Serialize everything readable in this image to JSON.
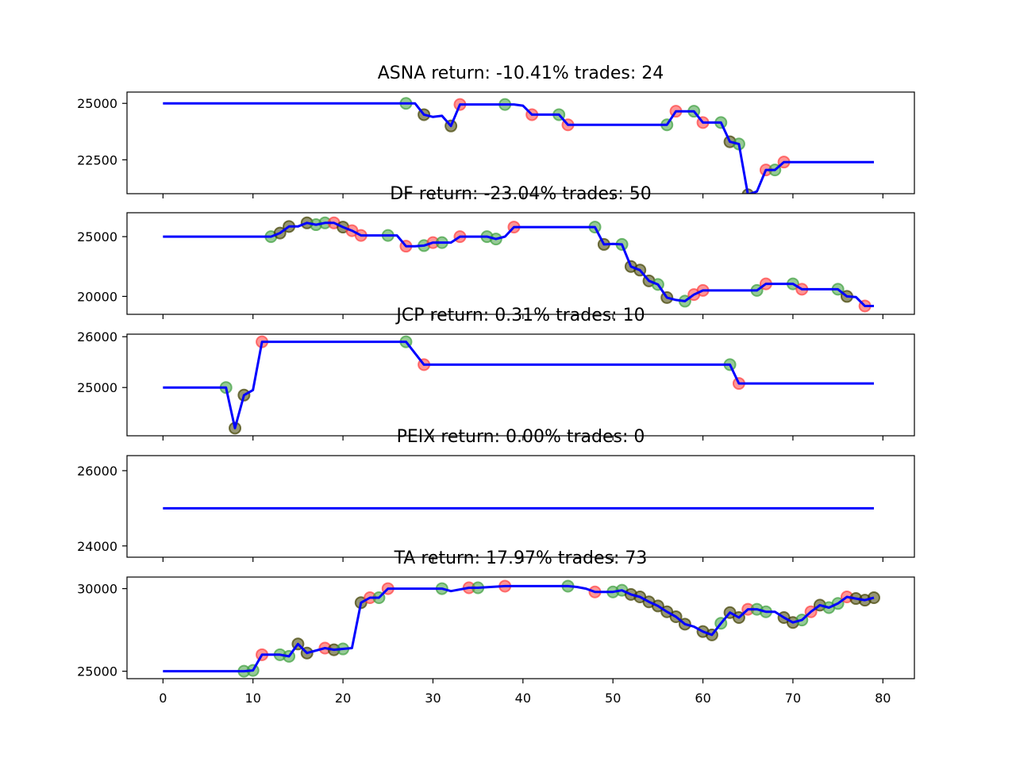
{
  "chart_data": [
    {
      "type": "line",
      "title": "ASNA return: -10.41% trades: 24",
      "ylim": [
        21000,
        25500
      ],
      "yticks": [
        22500,
        25000
      ],
      "line_color": "#0000ff",
      "points": [
        [
          0,
          25000
        ],
        [
          27,
          25000
        ],
        [
          28,
          25000
        ],
        [
          29,
          24500
        ],
        [
          30,
          24400
        ],
        [
          31,
          24450
        ],
        [
          32,
          24000
        ],
        [
          33,
          24950
        ],
        [
          34,
          24950
        ],
        [
          38,
          24950
        ],
        [
          39,
          24950
        ],
        [
          40,
          24900
        ],
        [
          41,
          24500
        ],
        [
          44,
          24500
        ],
        [
          45,
          24050
        ],
        [
          46,
          24050
        ],
        [
          55,
          24050
        ],
        [
          56,
          24050
        ],
        [
          57,
          24650
        ],
        [
          58,
          24650
        ],
        [
          59,
          24650
        ],
        [
          60,
          24150
        ],
        [
          61,
          24150
        ],
        [
          62,
          24150
        ],
        [
          63,
          23300
        ],
        [
          64,
          23200
        ],
        [
          65,
          20950
        ],
        [
          66,
          21100
        ],
        [
          67,
          22050
        ],
        [
          68,
          22050
        ],
        [
          69,
          22400
        ],
        [
          79,
          22400
        ]
      ],
      "markers": [
        {
          "x": 27,
          "y": 25000,
          "color": "green"
        },
        {
          "x": 29,
          "y": 24500,
          "color": "dark"
        },
        {
          "x": 32,
          "y": 24000,
          "color": "dark"
        },
        {
          "x": 33,
          "y": 24950,
          "color": "red"
        },
        {
          "x": 38,
          "y": 24950,
          "color": "green"
        },
        {
          "x": 41,
          "y": 24500,
          "color": "red"
        },
        {
          "x": 44,
          "y": 24500,
          "color": "green"
        },
        {
          "x": 45,
          "y": 24050,
          "color": "red"
        },
        {
          "x": 56,
          "y": 24050,
          "color": "green"
        },
        {
          "x": 57,
          "y": 24650,
          "color": "red"
        },
        {
          "x": 59,
          "y": 24650,
          "color": "green"
        },
        {
          "x": 60,
          "y": 24150,
          "color": "red"
        },
        {
          "x": 62,
          "y": 24150,
          "color": "green"
        },
        {
          "x": 63,
          "y": 23300,
          "color": "dark"
        },
        {
          "x": 64,
          "y": 23200,
          "color": "green"
        },
        {
          "x": 65,
          "y": 20950,
          "color": "dark"
        },
        {
          "x": 67,
          "y": 22050,
          "color": "red"
        },
        {
          "x": 68,
          "y": 22050,
          "color": "green"
        },
        {
          "x": 69,
          "y": 22400,
          "color": "red"
        }
      ]
    },
    {
      "type": "line",
      "title": "DF return: -23.04% trades: 50",
      "ylim": [
        18500,
        27000
      ],
      "yticks": [
        20000,
        25000
      ],
      "line_color": "#0000ff",
      "points": [
        [
          0,
          25000
        ],
        [
          12,
          25000
        ],
        [
          13,
          25300
        ],
        [
          14,
          25850
        ],
        [
          15,
          25850
        ],
        [
          16,
          26150
        ],
        [
          17,
          26000
        ],
        [
          18,
          26150
        ],
        [
          19,
          26150
        ],
        [
          20,
          25800
        ],
        [
          21,
          25500
        ],
        [
          22,
          25100
        ],
        [
          25,
          25100
        ],
        [
          26,
          25100
        ],
        [
          27,
          24200
        ],
        [
          28,
          24200
        ],
        [
          29,
          24250
        ],
        [
          30,
          24500
        ],
        [
          31,
          24500
        ],
        [
          32,
          24500
        ],
        [
          33,
          25000
        ],
        [
          35,
          25000
        ],
        [
          36,
          25000
        ],
        [
          37,
          24800
        ],
        [
          38,
          25000
        ],
        [
          39,
          25800
        ],
        [
          40,
          25800
        ],
        [
          48,
          25800
        ],
        [
          49,
          24350
        ],
        [
          50,
          24400
        ],
        [
          51,
          24350
        ],
        [
          52,
          22500
        ],
        [
          53,
          22200
        ],
        [
          54,
          21300
        ],
        [
          55,
          21000
        ],
        [
          56,
          19900
        ],
        [
          57,
          19700
        ],
        [
          58,
          19600
        ],
        [
          59,
          20150
        ],
        [
          60,
          20500
        ],
        [
          65,
          20500
        ],
        [
          66,
          20500
        ],
        [
          67,
          21050
        ],
        [
          68,
          21050
        ],
        [
          70,
          21050
        ],
        [
          71,
          20600
        ],
        [
          72,
          20600
        ],
        [
          75,
          20600
        ],
        [
          76,
          20000
        ],
        [
          77,
          19950
        ],
        [
          78,
          19200
        ],
        [
          79,
          19200
        ]
      ],
      "markers": [
        {
          "x": 12,
          "y": 25000,
          "color": "green"
        },
        {
          "x": 13,
          "y": 25300,
          "color": "dark"
        },
        {
          "x": 14,
          "y": 25850,
          "color": "dark"
        },
        {
          "x": 16,
          "y": 26150,
          "color": "dark"
        },
        {
          "x": 17,
          "y": 26000,
          "color": "green"
        },
        {
          "x": 18,
          "y": 26150,
          "color": "green"
        },
        {
          "x": 19,
          "y": 26150,
          "color": "red"
        },
        {
          "x": 20,
          "y": 25800,
          "color": "dark"
        },
        {
          "x": 21,
          "y": 25500,
          "color": "red"
        },
        {
          "x": 22,
          "y": 25100,
          "color": "red"
        },
        {
          "x": 25,
          "y": 25100,
          "color": "green"
        },
        {
          "x": 27,
          "y": 24200,
          "color": "red"
        },
        {
          "x": 29,
          "y": 24250,
          "color": "green"
        },
        {
          "x": 30,
          "y": 24500,
          "color": "red"
        },
        {
          "x": 31,
          "y": 24500,
          "color": "green"
        },
        {
          "x": 33,
          "y": 25000,
          "color": "red"
        },
        {
          "x": 36,
          "y": 25000,
          "color": "green"
        },
        {
          "x": 37,
          "y": 24800,
          "color": "green"
        },
        {
          "x": 39,
          "y": 25800,
          "color": "red"
        },
        {
          "x": 48,
          "y": 25800,
          "color": "green"
        },
        {
          "x": 49,
          "y": 24350,
          "color": "dark"
        },
        {
          "x": 51,
          "y": 24350,
          "color": "green"
        },
        {
          "x": 52,
          "y": 22500,
          "color": "dark"
        },
        {
          "x": 53,
          "y": 22200,
          "color": "dark"
        },
        {
          "x": 54,
          "y": 21300,
          "color": "dark"
        },
        {
          "x": 55,
          "y": 21000,
          "color": "green"
        },
        {
          "x": 56,
          "y": 19900,
          "color": "dark"
        },
        {
          "x": 58,
          "y": 19600,
          "color": "green"
        },
        {
          "x": 59,
          "y": 20150,
          "color": "red"
        },
        {
          "x": 60,
          "y": 20500,
          "color": "red"
        },
        {
          "x": 66,
          "y": 20500,
          "color": "green"
        },
        {
          "x": 67,
          "y": 21050,
          "color": "red"
        },
        {
          "x": 70,
          "y": 21050,
          "color": "green"
        },
        {
          "x": 71,
          "y": 20600,
          "color": "red"
        },
        {
          "x": 75,
          "y": 20600,
          "color": "green"
        },
        {
          "x": 76,
          "y": 20000,
          "color": "dark"
        },
        {
          "x": 78,
          "y": 19200,
          "color": "red"
        }
      ]
    },
    {
      "type": "line",
      "title": "JCP return: 0.31% trades: 10",
      "ylim": [
        24050,
        26050
      ],
      "yticks": [
        25000,
        26000
      ],
      "line_color": "#0000ff",
      "points": [
        [
          0,
          25000
        ],
        [
          7,
          25000
        ],
        [
          8,
          24200
        ],
        [
          9,
          24850
        ],
        [
          10,
          24950
        ],
        [
          11,
          25900
        ],
        [
          27,
          25900
        ],
        [
          29,
          25450
        ],
        [
          63,
          25450
        ],
        [
          64,
          25080
        ],
        [
          79,
          25080
        ]
      ],
      "markers": [
        {
          "x": 7,
          "y": 25000,
          "color": "green"
        },
        {
          "x": 8,
          "y": 24200,
          "color": "dark"
        },
        {
          "x": 9,
          "y": 24850,
          "color": "dark"
        },
        {
          "x": 11,
          "y": 25900,
          "color": "red"
        },
        {
          "x": 27,
          "y": 25900,
          "color": "green"
        },
        {
          "x": 29,
          "y": 25450,
          "color": "red"
        },
        {
          "x": 63,
          "y": 25450,
          "color": "green"
        },
        {
          "x": 64,
          "y": 25080,
          "color": "red"
        }
      ]
    },
    {
      "type": "line",
      "title": "PEIX return: 0.00% trades: 0",
      "ylim": [
        23700,
        26400
      ],
      "yticks": [
        24000,
        26000
      ],
      "line_color": "#0000ff",
      "points": [
        [
          0,
          25000
        ],
        [
          79,
          25000
        ]
      ],
      "markers": []
    },
    {
      "type": "line",
      "title": "TA return: 17.97% trades: 73",
      "ylim": [
        24550,
        30700
      ],
      "yticks": [
        25000,
        30000
      ],
      "line_color": "#0000ff",
      "points": [
        [
          0,
          25000
        ],
        [
          8,
          25000
        ],
        [
          9,
          25000
        ],
        [
          10,
          25050
        ],
        [
          11,
          26000
        ],
        [
          13,
          26000
        ],
        [
          14,
          25900
        ],
        [
          15,
          26650
        ],
        [
          16,
          26100
        ],
        [
          18,
          26400
        ],
        [
          19,
          26300
        ],
        [
          20,
          26350
        ],
        [
          21,
          26400
        ],
        [
          22,
          29150
        ],
        [
          23,
          29450
        ],
        [
          24,
          29450
        ],
        [
          25,
          30000
        ],
        [
          31,
          30000
        ],
        [
          32,
          29850
        ],
        [
          34,
          30050
        ],
        [
          35,
          30050
        ],
        [
          38,
          30150
        ],
        [
          45,
          30150
        ],
        [
          46,
          30100
        ],
        [
          47,
          30000
        ],
        [
          48,
          29800
        ],
        [
          50,
          29800
        ],
        [
          51,
          29900
        ],
        [
          52,
          29650
        ],
        [
          53,
          29500
        ],
        [
          54,
          29200
        ],
        [
          55,
          28950
        ],
        [
          56,
          28600
        ],
        [
          57,
          28300
        ],
        [
          58,
          27850
        ],
        [
          59,
          27700
        ],
        [
          60,
          27400
        ],
        [
          61,
          27200
        ],
        [
          62,
          27900
        ],
        [
          63,
          28550
        ],
        [
          64,
          28250
        ],
        [
          65,
          28750
        ],
        [
          66,
          28750
        ],
        [
          67,
          28600
        ],
        [
          68,
          28600
        ],
        [
          69,
          28250
        ],
        [
          70,
          27950
        ],
        [
          71,
          28100
        ],
        [
          72,
          28600
        ],
        [
          73,
          29000
        ],
        [
          74,
          28850
        ],
        [
          75,
          29100
        ],
        [
          76,
          29500
        ],
        [
          77,
          29400
        ],
        [
          78,
          29300
        ],
        [
          79,
          29450
        ]
      ],
      "markers": [
        {
          "x": 9,
          "y": 25000,
          "color": "green"
        },
        {
          "x": 10,
          "y": 25050,
          "color": "green"
        },
        {
          "x": 11,
          "y": 26000,
          "color": "red"
        },
        {
          "x": 13,
          "y": 26000,
          "color": "green"
        },
        {
          "x": 14,
          "y": 25900,
          "color": "green"
        },
        {
          "x": 15,
          "y": 26650,
          "color": "dark"
        },
        {
          "x": 16,
          "y": 26100,
          "color": "dark"
        },
        {
          "x": 18,
          "y": 26400,
          "color": "red"
        },
        {
          "x": 19,
          "y": 26300,
          "color": "dark"
        },
        {
          "x": 20,
          "y": 26350,
          "color": "green"
        },
        {
          "x": 22,
          "y": 29150,
          "color": "dark"
        },
        {
          "x": 23,
          "y": 29450,
          "color": "red"
        },
        {
          "x": 24,
          "y": 29450,
          "color": "green"
        },
        {
          "x": 25,
          "y": 30000,
          "color": "red"
        },
        {
          "x": 31,
          "y": 30000,
          "color": "green"
        },
        {
          "x": 34,
          "y": 30050,
          "color": "red"
        },
        {
          "x": 35,
          "y": 30050,
          "color": "green"
        },
        {
          "x": 38,
          "y": 30150,
          "color": "red"
        },
        {
          "x": 45,
          "y": 30150,
          "color": "green"
        },
        {
          "x": 48,
          "y": 29800,
          "color": "red"
        },
        {
          "x": 50,
          "y": 29800,
          "color": "green"
        },
        {
          "x": 51,
          "y": 29900,
          "color": "green"
        },
        {
          "x": 52,
          "y": 29650,
          "color": "dark"
        },
        {
          "x": 53,
          "y": 29500,
          "color": "dark"
        },
        {
          "x": 54,
          "y": 29200,
          "color": "dark"
        },
        {
          "x": 55,
          "y": 28950,
          "color": "dark"
        },
        {
          "x": 56,
          "y": 28600,
          "color": "dark"
        },
        {
          "x": 57,
          "y": 28300,
          "color": "dark"
        },
        {
          "x": 58,
          "y": 27850,
          "color": "dark"
        },
        {
          "x": 60,
          "y": 27400,
          "color": "dark"
        },
        {
          "x": 61,
          "y": 27200,
          "color": "dark"
        },
        {
          "x": 62,
          "y": 27900,
          "color": "green"
        },
        {
          "x": 63,
          "y": 28550,
          "color": "dark"
        },
        {
          "x": 64,
          "y": 28250,
          "color": "dark"
        },
        {
          "x": 65,
          "y": 28750,
          "color": "red"
        },
        {
          "x": 66,
          "y": 28750,
          "color": "green"
        },
        {
          "x": 67,
          "y": 28600,
          "color": "green"
        },
        {
          "x": 69,
          "y": 28250,
          "color": "dark"
        },
        {
          "x": 70,
          "y": 27950,
          "color": "dark"
        },
        {
          "x": 71,
          "y": 28100,
          "color": "green"
        },
        {
          "x": 72,
          "y": 28600,
          "color": "red"
        },
        {
          "x": 73,
          "y": 29000,
          "color": "dark"
        },
        {
          "x": 74,
          "y": 28850,
          "color": "green"
        },
        {
          "x": 75,
          "y": 29100,
          "color": "green"
        },
        {
          "x": 76,
          "y": 29500,
          "color": "red"
        },
        {
          "x": 77,
          "y": 29400,
          "color": "dark"
        },
        {
          "x": 78,
          "y": 29300,
          "color": "dark"
        },
        {
          "x": 79,
          "y": 29450,
          "color": "dark"
        }
      ]
    }
  ],
  "x_axis": {
    "xlim": [
      -4,
      83.5
    ],
    "ticks": [
      0,
      10,
      20,
      30,
      40,
      50,
      60,
      70,
      80
    ]
  },
  "marker_colors": {
    "green": "#3f9f3f",
    "red": "#ff4040",
    "dark": "#404000"
  }
}
